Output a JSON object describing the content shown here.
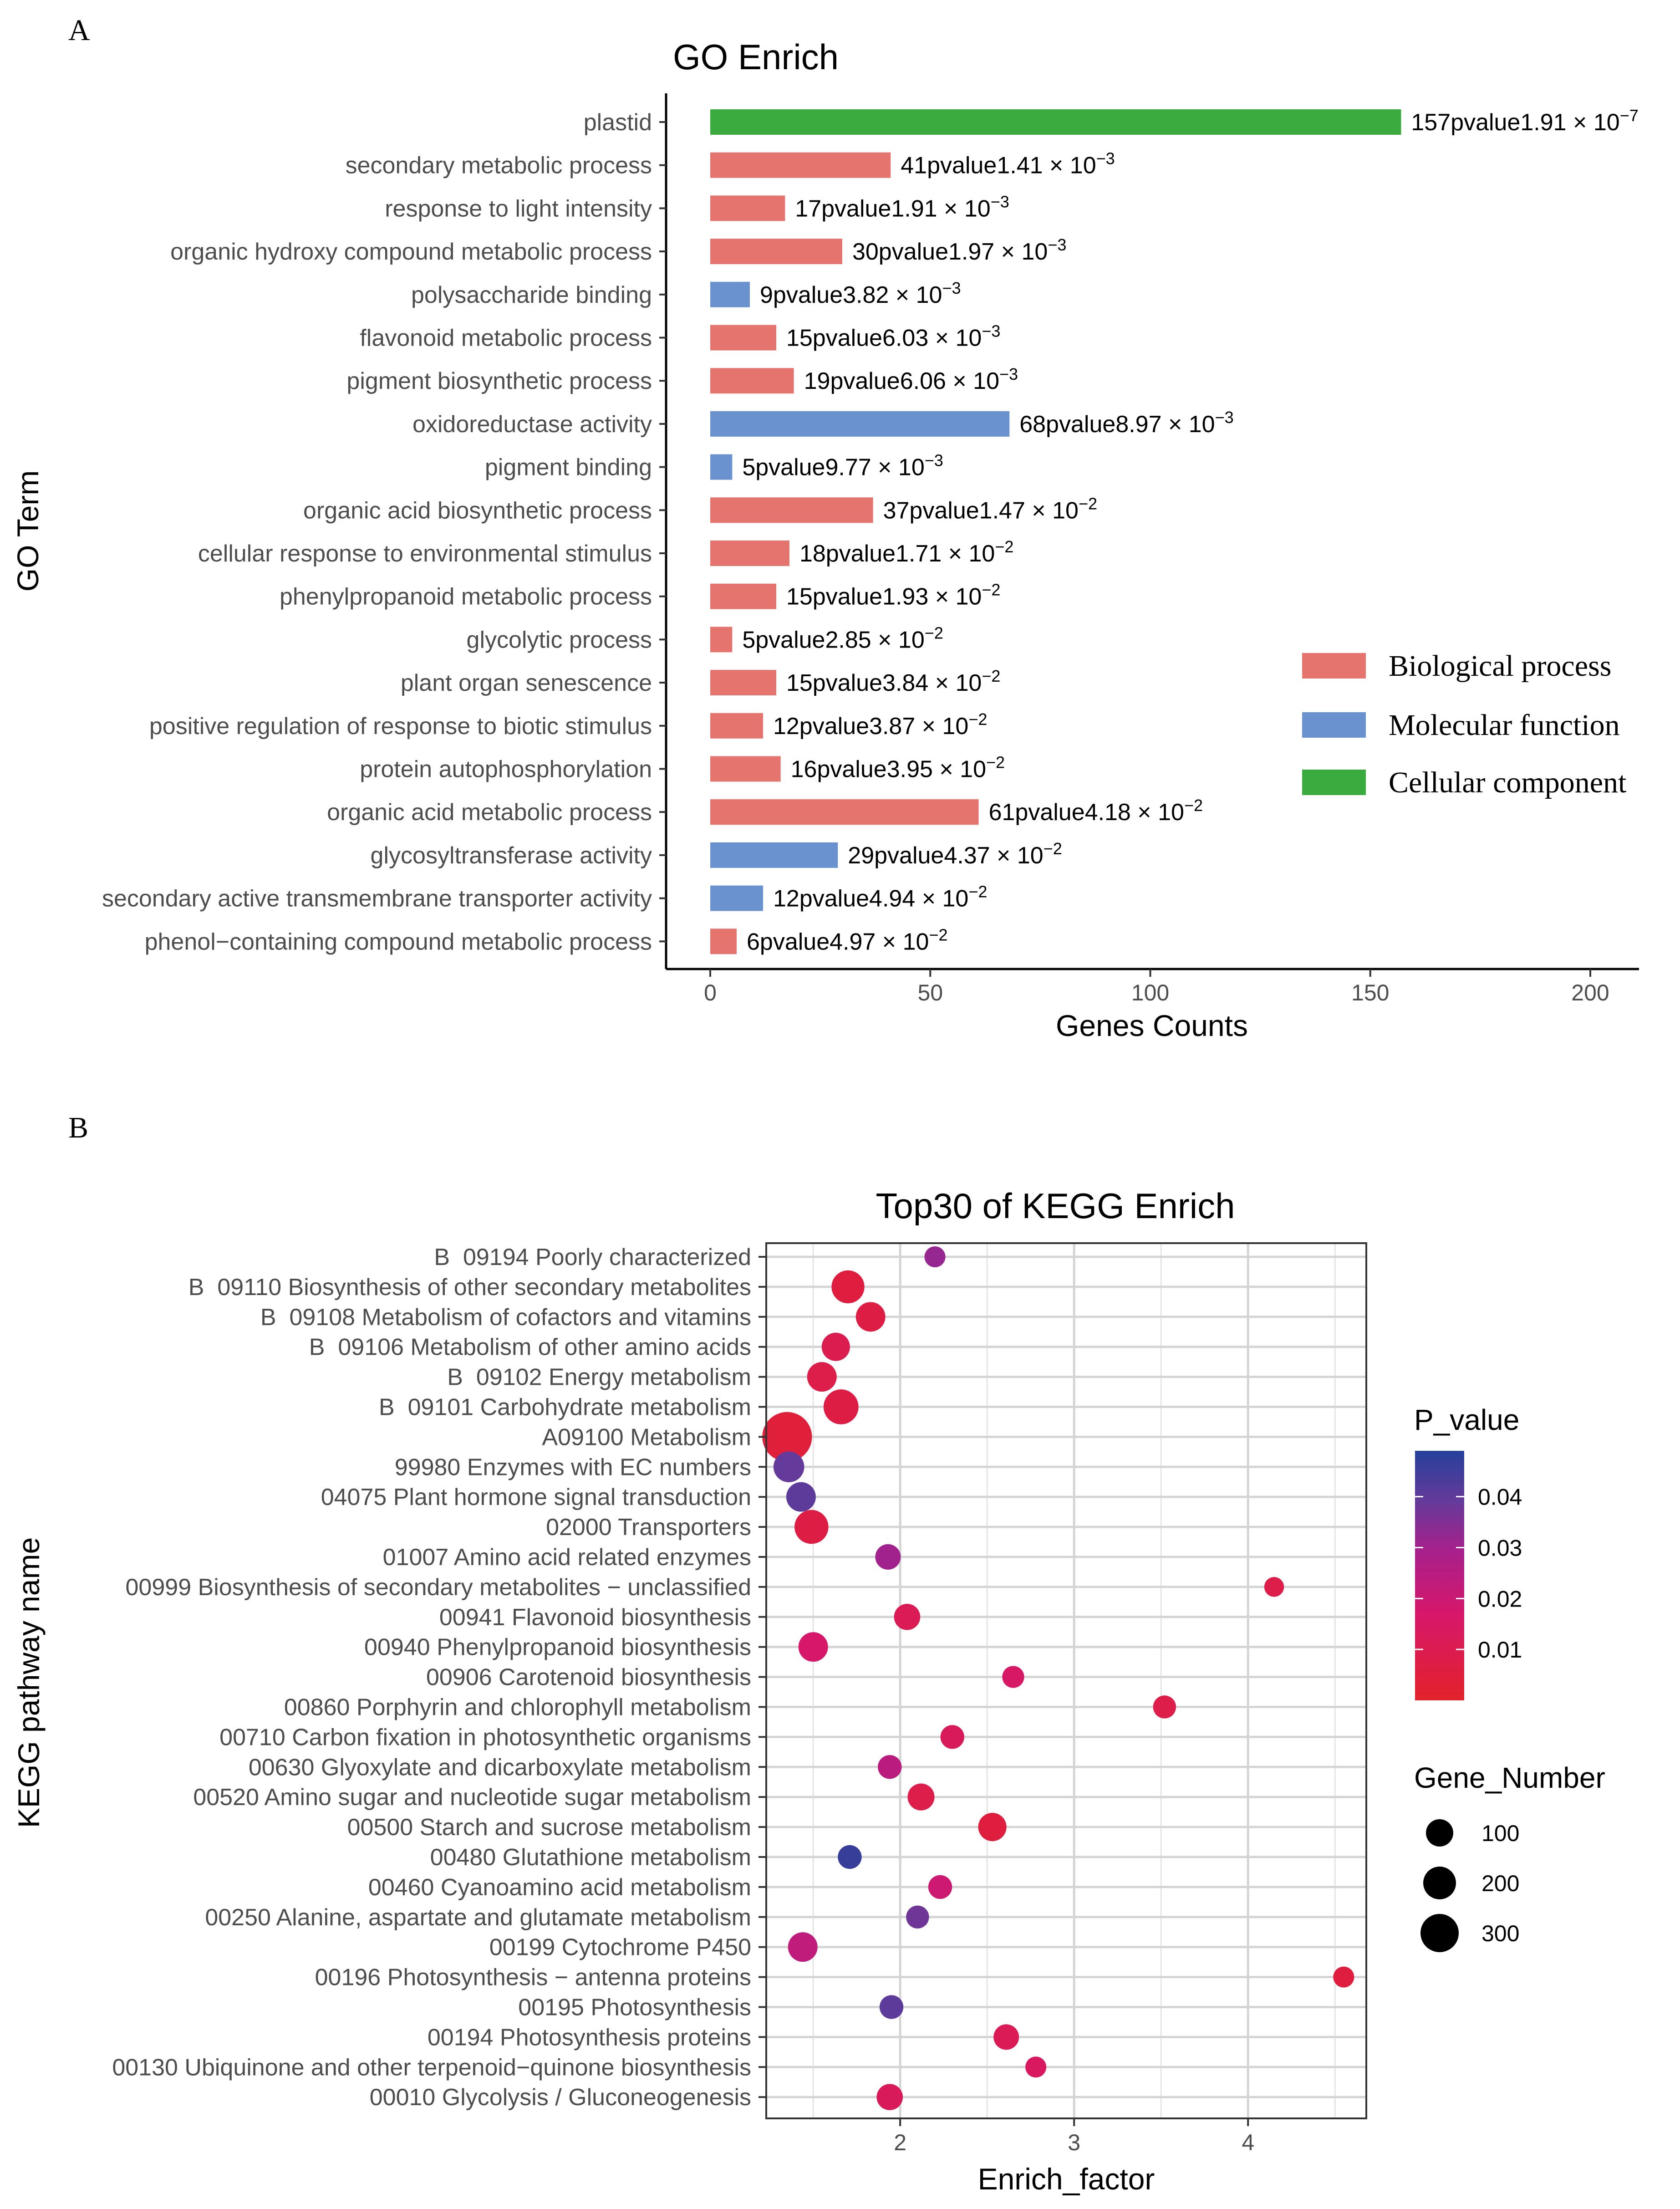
{
  "panels": {
    "a_label": "A",
    "b_label": "B"
  },
  "chart_data": [
    {
      "type": "bar",
      "orientation": "horizontal",
      "title": "GO Enrich",
      "xlabel": "Genes Counts",
      "ylabel": "GO Term",
      "xlim": [
        0,
        200
      ],
      "xticks": [
        0,
        50,
        100,
        150,
        200
      ],
      "grid": false,
      "legend_position": "right",
      "legend": [
        {
          "name": "Biological process",
          "color": "#E5736E"
        },
        {
          "name": "Molecular function",
          "color": "#6A92CF"
        },
        {
          "name": "Cellular component",
          "color": "#3BAA3F"
        }
      ],
      "label_sep": "pvalue",
      "bars": [
        {
          "term": "plastid",
          "count": 157,
          "group": "Cellular component",
          "p_mantissa": "1.91",
          "p_exp": "−7"
        },
        {
          "term": "secondary metabolic process",
          "count": 41,
          "group": "Biological process",
          "p_mantissa": "1.41",
          "p_exp": "−3"
        },
        {
          "term": "response to light intensity",
          "count": 17,
          "group": "Biological process",
          "p_mantissa": "1.91",
          "p_exp": "−3"
        },
        {
          "term": "organic hydroxy compound metabolic process",
          "count": 30,
          "group": "Biological process",
          "p_mantissa": "1.97",
          "p_exp": "−3"
        },
        {
          "term": "polysaccharide binding",
          "count": 9,
          "group": "Molecular function",
          "p_mantissa": "3.82",
          "p_exp": "−3"
        },
        {
          "term": "flavonoid metabolic process",
          "count": 15,
          "group": "Biological process",
          "p_mantissa": "6.03",
          "p_exp": "−3"
        },
        {
          "term": "pigment biosynthetic process",
          "count": 19,
          "group": "Biological process",
          "p_mantissa": "6.06",
          "p_exp": "−3"
        },
        {
          "term": "oxidoreductase activity",
          "count": 68,
          "group": "Molecular function",
          "p_mantissa": "8.97",
          "p_exp": "−3"
        },
        {
          "term": "pigment binding",
          "count": 5,
          "group": "Molecular function",
          "p_mantissa": "9.77",
          "p_exp": "−3"
        },
        {
          "term": "organic acid biosynthetic process",
          "count": 37,
          "group": "Biological process",
          "p_mantissa": "1.47",
          "p_exp": "−2"
        },
        {
          "term": "cellular response to environmental stimulus",
          "count": 18,
          "group": "Biological process",
          "p_mantissa": "1.71",
          "p_exp": "−2"
        },
        {
          "term": "phenylpropanoid metabolic process",
          "count": 15,
          "group": "Biological process",
          "p_mantissa": "1.93",
          "p_exp": "−2"
        },
        {
          "term": "glycolytic process",
          "count": 5,
          "group": "Biological process",
          "p_mantissa": "2.85",
          "p_exp": "−2"
        },
        {
          "term": "plant organ senescence",
          "count": 15,
          "group": "Biological process",
          "p_mantissa": "3.84",
          "p_exp": "−2"
        },
        {
          "term": "positive regulation of response to biotic stimulus",
          "count": 12,
          "group": "Biological process",
          "p_mantissa": "3.87",
          "p_exp": "−2"
        },
        {
          "term": "protein autophosphorylation",
          "count": 16,
          "group": "Biological process",
          "p_mantissa": "3.95",
          "p_exp": "−2"
        },
        {
          "term": "organic acid metabolic process",
          "count": 61,
          "group": "Biological process",
          "p_mantissa": "4.18",
          "p_exp": "−2"
        },
        {
          "term": "glycosyltransferase activity",
          "count": 29,
          "group": "Molecular function",
          "p_mantissa": "4.37",
          "p_exp": "−2"
        },
        {
          "term": "secondary active transmembrane transporter activity",
          "count": 12,
          "group": "Molecular function",
          "p_mantissa": "4.94",
          "p_exp": "−2"
        },
        {
          "term": "phenol−containing compound metabolic process",
          "count": 6,
          "group": "Biological process",
          "p_mantissa": "4.97",
          "p_exp": "−2"
        }
      ]
    },
    {
      "type": "scatter",
      "title": "Top30 of KEGG Enrich",
      "xlabel": "Enrich_factor",
      "ylabel": "KEGG pathway name",
      "xlim": [
        1.23,
        4.68
      ],
      "xticks": [
        2,
        3,
        4
      ],
      "grid": true,
      "legend_position": "right",
      "color_legend": {
        "title": "P_value",
        "ticks": [
          0.04,
          0.03,
          0.02,
          0.01
        ],
        "tick_labels": [
          "0.04",
          "0.03",
          "0.02",
          "0.01"
        ],
        "range": [
          0.0,
          0.049
        ],
        "colors": [
          "#E3222A",
          "#C3177E",
          "#643A9A",
          "#25409A"
        ]
      },
      "size_legend": {
        "title": "Gene_Number",
        "values": [
          100,
          200,
          300
        ],
        "labels": [
          "100",
          "200",
          "300"
        ]
      },
      "points": [
        {
          "name": "B  09194 Poorly characterized",
          "x": 2.2,
          "p": 0.025,
          "genes": 25
        },
        {
          "name": "B  09110 Biosynthesis of other secondary metabolites",
          "x": 1.7,
          "p": 0.004,
          "genes": 110
        },
        {
          "name": "B  09108 Metabolism of cofactors and vitamins",
          "x": 1.83,
          "p": 0.005,
          "genes": 80
        },
        {
          "name": "B  09106 Metabolism of other amino acids",
          "x": 1.63,
          "p": 0.007,
          "genes": 70
        },
        {
          "name": "B  09102 Energy metabolism",
          "x": 1.55,
          "p": 0.006,
          "genes": 80
        },
        {
          "name": "B  09101 Carbohydrate metabolism",
          "x": 1.66,
          "p": 0.005,
          "genes": 130
        },
        {
          "name": "A09100 Metabolism",
          "x": 1.35,
          "p": 0.003,
          "genes": 330
        },
        {
          "name": "99980 Enzymes with EC numbers",
          "x": 1.36,
          "p": 0.034,
          "genes": 90
        },
        {
          "name": "04075 Plant hormone signal transduction",
          "x": 1.43,
          "p": 0.036,
          "genes": 80
        },
        {
          "name": "02000 Transporters",
          "x": 1.49,
          "p": 0.005,
          "genes": 120
        },
        {
          "name": "01007 Amino acid related enzymes",
          "x": 1.93,
          "p": 0.023,
          "genes": 50
        },
        {
          "name": "00999 Biosynthesis of secondary metabolites − unclassified",
          "x": 4.15,
          "p": 0.006,
          "genes": 20
        },
        {
          "name": "00941 Flavonoid biosynthesis",
          "x": 2.04,
          "p": 0.008,
          "genes": 55
        },
        {
          "name": "00940 Phenylpropanoid biosynthesis",
          "x": 1.5,
          "p": 0.012,
          "genes": 80
        },
        {
          "name": "00906 Carotenoid biosynthesis",
          "x": 2.65,
          "p": 0.011,
          "genes": 30
        },
        {
          "name": "00860 Porphyrin and chlorophyll metabolism",
          "x": 3.52,
          "p": 0.006,
          "genes": 35
        },
        {
          "name": "00710 Carbon fixation in photosynthetic organisms",
          "x": 2.3,
          "p": 0.009,
          "genes": 40
        },
        {
          "name": "00630 Glyoxylate and dicarboxylate metabolism",
          "x": 1.94,
          "p": 0.018,
          "genes": 40
        },
        {
          "name": "00520 Amino sugar and nucleotide sugar metabolism",
          "x": 2.12,
          "p": 0.006,
          "genes": 60
        },
        {
          "name": "00500 Starch and sucrose metabolism",
          "x": 2.53,
          "p": 0.004,
          "genes": 70
        },
        {
          "name": "00480 Glutathione metabolism",
          "x": 1.71,
          "p": 0.045,
          "genes": 40
        },
        {
          "name": "00460 Cyanoamino acid metabolism",
          "x": 2.23,
          "p": 0.014,
          "genes": 40
        },
        {
          "name": "00250 Alanine, aspartate and glutamate metabolism",
          "x": 2.1,
          "p": 0.032,
          "genes": 35
        },
        {
          "name": "00199 Cytochrome P450",
          "x": 1.44,
          "p": 0.017,
          "genes": 80
        },
        {
          "name": "00196 Photosynthesis − antenna proteins",
          "x": 4.55,
          "p": 0.004,
          "genes": 25
        },
        {
          "name": "00195 Photosynthesis",
          "x": 1.95,
          "p": 0.036,
          "genes": 40
        },
        {
          "name": "00194 Photosynthesis proteins",
          "x": 2.61,
          "p": 0.008,
          "genes": 50
        },
        {
          "name": "00130 Ubiquinone and other terpenoid−quinone biosynthesis",
          "x": 2.78,
          "p": 0.01,
          "genes": 25
        },
        {
          "name": "00010 Glycolysis / Gluconeogenesis",
          "x": 1.94,
          "p": 0.009,
          "genes": 55
        }
      ]
    }
  ]
}
